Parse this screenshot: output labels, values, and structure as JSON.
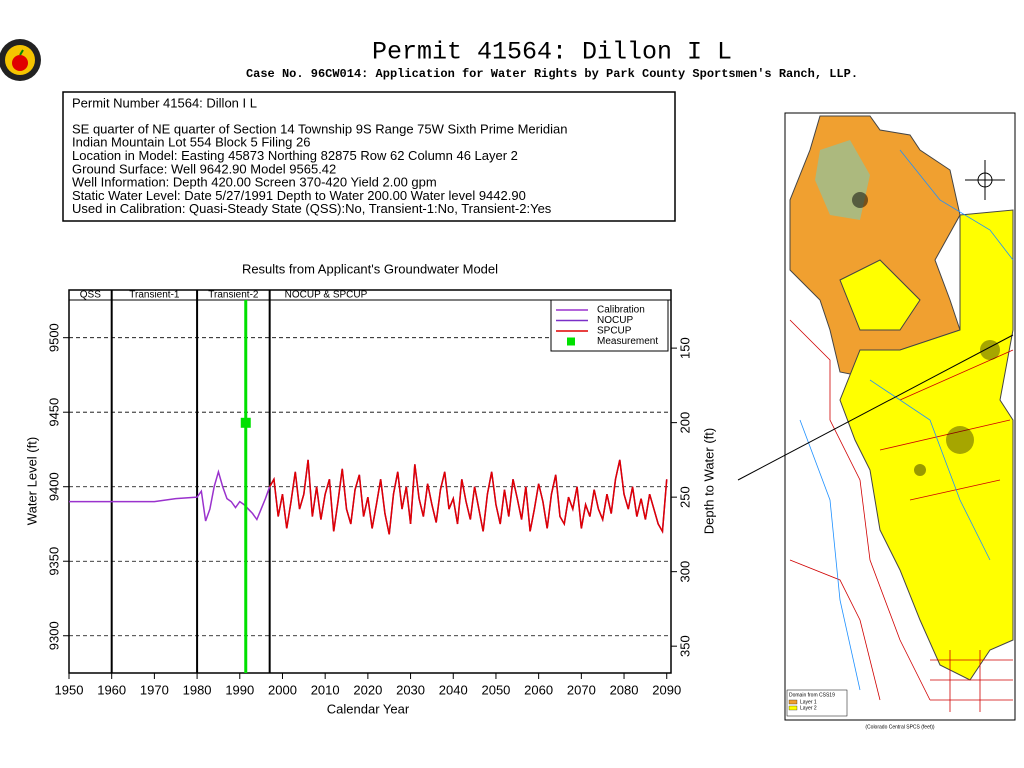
{
  "header": {
    "title": "Permit 41564:  Dillon I L",
    "subtitle": "Case No. 96CW014: Application for Water Rights by Park County Sportsmen's Ranch, LLP."
  },
  "info": {
    "heading": "Permit Number 41564: Dillon I L",
    "lines": [
      "SE quarter of NE quarter of Section 14 Township 9S Range 75W Sixth Prime Meridian",
      "Indian Mountain Lot 554 Block 5 Filing 26",
      "Location in Model: Easting 45873 Northing  82875 Row   62 Column 46 Layer 2",
      "Ground Surface: Well   9642.90 Model   9565.42",
      "Well Information: Depth    420.00 Screen 370-420 Yield       2.00 gpm",
      "Static Water Level: Date   5/27/1991 Depth to Water    200.00 Water level   9442.90",
      "Used in Calibration: Quasi-Steady State (QSS):No, Transient-1:No, Transient-2:Yes"
    ]
  },
  "chart_data": {
    "type": "line",
    "title": "Results from Applicant's Groundwater Model",
    "xlabel": "Calendar Year",
    "ylabel": "Water Level (ft)",
    "y2label": "Depth to Water (ft)",
    "xlim": [
      1950,
      2091
    ],
    "xticks": [
      1950,
      1960,
      1970,
      1980,
      1990,
      2000,
      2010,
      2020,
      2030,
      2040,
      2050,
      2060,
      2070,
      2080,
      2090
    ],
    "ylim": [
      9275,
      9532
    ],
    "yticks": [
      9300,
      9350,
      9400,
      9450,
      9500
    ],
    "y2lim": [
      368,
      111
    ],
    "y2ticks": [
      150,
      200,
      250,
      300,
      350
    ],
    "grid": true,
    "periods": [
      "QSS",
      "Transient-1",
      "Transient-2",
      "NOCUP  &  SPCUP"
    ],
    "period_bounds": [
      1960,
      1980,
      1997
    ],
    "series": [
      {
        "name": "Calibration",
        "color": "#9a32cd",
        "x": [
          1950,
          1960,
          1970,
          1975,
          1980,
          1981,
          1982,
          1983,
          1984,
          1985,
          1986,
          1987,
          1988,
          1989,
          1990,
          1991,
          1992,
          1993,
          1994,
          1995,
          1996,
          1997
        ],
        "values": [
          9390,
          9390,
          9390,
          9392,
          9393,
          9397,
          9377,
          9385,
          9400,
          9410,
          9400,
          9392,
          9390,
          9386,
          9390,
          9388,
          9385,
          9382,
          9378,
          9385,
          9392,
          9400
        ]
      },
      {
        "name": "NOCUP",
        "color": "#7a2fc8",
        "x": [
          1997,
          1998,
          1999,
          2000,
          2001,
          2002,
          2003,
          2004,
          2005,
          2006,
          2007,
          2008,
          2009,
          2010,
          2011,
          2012,
          2013,
          2014,
          2015,
          2016,
          2017,
          2018,
          2019,
          2020,
          2021,
          2022,
          2023,
          2024,
          2025,
          2026,
          2027,
          2028,
          2029,
          2030,
          2031,
          2032,
          2033,
          2034,
          2035,
          2036,
          2037,
          2038,
          2039,
          2040,
          2041,
          2042,
          2043,
          2044,
          2045,
          2046,
          2047,
          2048,
          2049,
          2050,
          2051,
          2052,
          2053,
          2054,
          2055,
          2056,
          2057,
          2058,
          2059,
          2060,
          2061,
          2062,
          2063,
          2064,
          2065,
          2066,
          2067,
          2068,
          2069,
          2070,
          2071,
          2072,
          2073,
          2074,
          2075,
          2076,
          2077,
          2078,
          2079,
          2080,
          2081,
          2082,
          2083,
          2084,
          2085,
          2086,
          2087,
          2088,
          2089,
          2090
        ],
        "values": [
          9400,
          9405,
          9380,
          9395,
          9372,
          9390,
          9410,
          9385,
          9395,
          9418,
          9380,
          9400,
          9378,
          9395,
          9405,
          9370,
          9390,
          9412,
          9385,
          9375,
          9398,
          9408,
          9380,
          9393,
          9372,
          9388,
          9405,
          9382,
          9368,
          9395,
          9410,
          9385,
          9400,
          9375,
          9415,
          9392,
          9380,
          9402,
          9388,
          9376,
          9398,
          9410,
          9385,
          9392,
          9375,
          9405,
          9390,
          9378,
          9400,
          9385,
          9370,
          9395,
          9410,
          9388,
          9375,
          9398,
          9380,
          9405,
          9392,
          9378,
          9400,
          9370,
          9385,
          9402,
          9390,
          9372,
          9395,
          9408,
          9380,
          9375,
          9393,
          9385,
          9400,
          9372,
          9388,
          9380,
          9398,
          9385,
          9378,
          9395,
          9382,
          9405,
          9418,
          9395,
          9385,
          9400,
          9380,
          9392,
          9378,
          9395,
          9385,
          9375,
          9370,
          9405
        ]
      },
      {
        "name": "SPCUP",
        "color": "#e00000",
        "x": [
          1997,
          1998,
          1999,
          2000,
          2001,
          2002,
          2003,
          2004,
          2005,
          2006,
          2007,
          2008,
          2009,
          2010,
          2011,
          2012,
          2013,
          2014,
          2015,
          2016,
          2017,
          2018,
          2019,
          2020,
          2021,
          2022,
          2023,
          2024,
          2025,
          2026,
          2027,
          2028,
          2029,
          2030,
          2031,
          2032,
          2033,
          2034,
          2035,
          2036,
          2037,
          2038,
          2039,
          2040,
          2041,
          2042,
          2043,
          2044,
          2045,
          2046,
          2047,
          2048,
          2049,
          2050,
          2051,
          2052,
          2053,
          2054,
          2055,
          2056,
          2057,
          2058,
          2059,
          2060,
          2061,
          2062,
          2063,
          2064,
          2065,
          2066,
          2067,
          2068,
          2069,
          2070,
          2071,
          2072,
          2073,
          2074,
          2075,
          2076,
          2077,
          2078,
          2079,
          2080,
          2081,
          2082,
          2083,
          2084,
          2085,
          2086,
          2087,
          2088,
          2089,
          2090
        ],
        "values": [
          9400,
          9405,
          9380,
          9395,
          9372,
          9390,
          9410,
          9385,
          9395,
          9418,
          9380,
          9400,
          9378,
          9395,
          9405,
          9370,
          9390,
          9412,
          9385,
          9375,
          9398,
          9408,
          9380,
          9393,
          9372,
          9388,
          9405,
          9382,
          9368,
          9395,
          9410,
          9385,
          9400,
          9375,
          9415,
          9392,
          9380,
          9402,
          9388,
          9376,
          9398,
          9410,
          9385,
          9392,
          9375,
          9405,
          9390,
          9378,
          9400,
          9385,
          9370,
          9395,
          9410,
          9388,
          9375,
          9398,
          9380,
          9405,
          9392,
          9378,
          9400,
          9370,
          9385,
          9402,
          9390,
          9372,
          9395,
          9408,
          9380,
          9375,
          9393,
          9385,
          9400,
          9372,
          9388,
          9380,
          9398,
          9385,
          9378,
          9395,
          9382,
          9405,
          9418,
          9395,
          9385,
          9400,
          9380,
          9392,
          9378,
          9395,
          9385,
          9375,
          9370,
          9405
        ]
      },
      {
        "name": "Measurement",
        "color": "#00e000",
        "marker": true,
        "x": [
          1991.4
        ],
        "values": [
          9442.9
        ]
      }
    ]
  },
  "map": {
    "legend_title": "Domain from CSS19",
    "layers": [
      {
        "name": "Layer 1",
        "color": "#f0a030"
      },
      {
        "name": "Layer 2",
        "color": "#ffff00"
      }
    ],
    "xlabel": "(Colorado Central SPCS (feet))"
  }
}
